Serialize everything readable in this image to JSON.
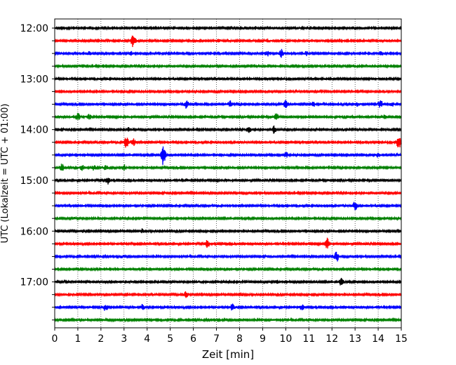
{
  "chart_data": {
    "type": "line",
    "title": "",
    "xlabel": "Zeit  [min]",
    "ylabel": "UTC (Lokalzeit = UTC + 01:00)",
    "xlim": [
      0,
      15
    ],
    "x_ticks": [
      "0",
      "1",
      "2",
      "3",
      "4",
      "5",
      "6",
      "7",
      "8",
      "9",
      "10",
      "11",
      "12",
      "13",
      "14",
      "15"
    ],
    "y_tick_labels": [
      "12:00",
      "13:00",
      "14:00",
      "15:00",
      "16:00",
      "17:00"
    ],
    "grid_x": "dotted",
    "line_colors": [
      "#000000",
      "#ff0000",
      "#0000ff",
      "#008000"
    ],
    "traces": [
      {
        "start": "12:00",
        "events": [
          [
            1.5,
            0.2
          ],
          [
            8.7,
            0.2
          ],
          [
            13.3,
            0.15
          ]
        ]
      },
      {
        "start": "12:15",
        "events": [
          [
            3.4,
            1.0
          ],
          [
            2.3,
            0.2
          ],
          [
            7.1,
            0.2
          ],
          [
            9.2,
            0.25
          ],
          [
            13.4,
            0.2
          ]
        ]
      },
      {
        "start": "12:30",
        "events": [
          [
            1.5,
            0.3
          ],
          [
            3.3,
            0.3
          ],
          [
            9.2,
            0.4
          ],
          [
            9.8,
            0.6
          ],
          [
            10.9,
            0.3
          ],
          [
            14.1,
            0.3
          ]
        ]
      },
      {
        "start": "12:45",
        "events": [
          [
            1.1,
            0.15
          ],
          [
            2.1,
            0.15
          ],
          [
            7.0,
            0.1
          ]
        ]
      },
      {
        "start": "13:00",
        "events": []
      },
      {
        "start": "13:15",
        "events": []
      },
      {
        "start": "13:30",
        "events": [
          [
            5.7,
            0.6
          ],
          [
            7.6,
            0.5
          ],
          [
            10.0,
            0.8
          ],
          [
            11.2,
            0.3
          ],
          [
            13.1,
            0.3
          ],
          [
            14.1,
            0.6
          ],
          [
            14.6,
            0.4
          ]
        ]
      },
      {
        "start": "13:45",
        "events": [
          [
            1.0,
            0.5
          ],
          [
            1.5,
            0.4
          ],
          [
            9.6,
            0.7
          ],
          [
            14.3,
            0.3
          ]
        ]
      },
      {
        "start": "14:00",
        "events": [
          [
            3.2,
            0.3
          ],
          [
            8.4,
            0.5
          ],
          [
            9.5,
            0.6
          ],
          [
            12.6,
            0.2
          ]
        ]
      },
      {
        "start": "14:15",
        "events": [
          [
            3.1,
            0.9
          ],
          [
            3.4,
            0.5
          ],
          [
            14.9,
            1.0
          ]
        ]
      },
      {
        "start": "14:30",
        "events": [
          [
            4.7,
            1.6
          ],
          [
            7.2,
            0.2
          ],
          [
            10.0,
            0.5
          ],
          [
            14.0,
            0.3
          ]
        ]
      },
      {
        "start": "14:45",
        "events": [
          [
            0.3,
            0.6
          ],
          [
            1.2,
            0.5
          ],
          [
            1.7,
            0.4
          ],
          [
            2.2,
            0.3
          ],
          [
            3.0,
            0.4
          ]
        ]
      },
      {
        "start": "15:00",
        "events": [
          [
            2.3,
            0.5
          ],
          [
            5.7,
            0.15
          ]
        ]
      },
      {
        "start": "15:15",
        "events": []
      },
      {
        "start": "15:30",
        "events": [
          [
            13.0,
            0.7
          ],
          [
            12.4,
            0.15
          ]
        ]
      },
      {
        "start": "15:45",
        "events": [
          [
            0.9,
            0.15
          ],
          [
            3.7,
            0.1
          ]
        ]
      },
      {
        "start": "16:00",
        "events": [
          [
            1.2,
            0.2
          ],
          [
            3.8,
            0.3
          ]
        ]
      },
      {
        "start": "16:15",
        "events": [
          [
            6.6,
            0.6
          ],
          [
            11.8,
            0.8
          ],
          [
            7.3,
            0.1
          ]
        ]
      },
      {
        "start": "16:30",
        "events": [
          [
            12.2,
            0.8
          ],
          [
            2.9,
            0.15
          ],
          [
            9.5,
            0.1
          ]
        ]
      },
      {
        "start": "16:45",
        "events": []
      },
      {
        "start": "17:00",
        "events": [
          [
            9.6,
            0.3
          ],
          [
            12.4,
            0.6
          ],
          [
            6.3,
            0.1
          ]
        ]
      },
      {
        "start": "17:15",
        "events": [
          [
            5.7,
            0.5
          ],
          [
            8.1,
            0.2
          ]
        ]
      },
      {
        "start": "17:30",
        "events": [
          [
            2.2,
            0.5
          ],
          [
            3.8,
            0.4
          ],
          [
            7.7,
            0.5
          ],
          [
            10.7,
            0.4
          ]
        ]
      },
      {
        "start": "17:45",
        "events": [
          [
            9.5,
            0.1
          ]
        ]
      }
    ]
  }
}
